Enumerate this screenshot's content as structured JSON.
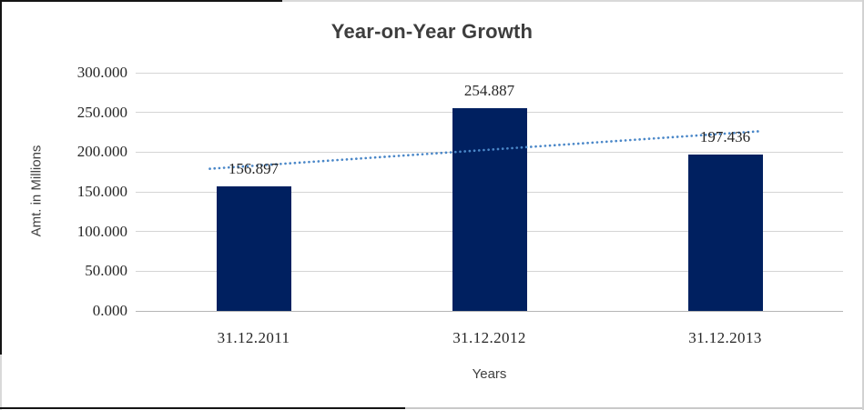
{
  "chart_data": {
    "type": "bar",
    "title": "Year-on-Year Growth",
    "xlabel": "Years",
    "ylabel": "Amt. in Millions",
    "categories": [
      "31.12.2011",
      "31.12.2012",
      "31.12.2013"
    ],
    "values": [
      156.897,
      254.887,
      197.436
    ],
    "data_labels": [
      "156.897",
      "254.887",
      "197.436"
    ],
    "y_ticks": [
      {
        "value": 300,
        "label": "300.000"
      },
      {
        "value": 250,
        "label": "250.000"
      },
      {
        "value": 200,
        "label": "200.000"
      },
      {
        "value": 150,
        "label": "150.000"
      },
      {
        "value": 100,
        "label": "100.000"
      },
      {
        "value": 50,
        "label": "50.000"
      },
      {
        "value": 0,
        "label": "0.000"
      }
    ],
    "ylim": [
      0,
      300
    ],
    "grid": true,
    "legend": "none",
    "bar_color": "#002060",
    "trendline": {
      "type": "linear",
      "style": "dotted",
      "color": "#4a87c8"
    },
    "gridline_color": "#d5d5d5",
    "axis_line_color": "#b5b5b5",
    "text_color": "#262626",
    "title_color": "#3d3d3d"
  }
}
